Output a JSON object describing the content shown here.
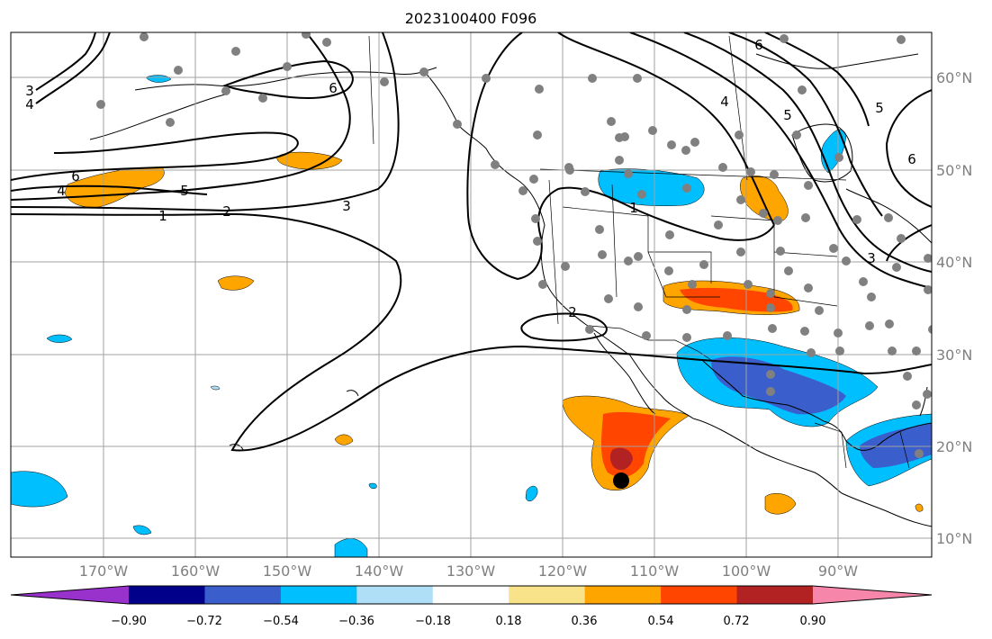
{
  "title": "2023100400 F096",
  "axes": {
    "lon_ticks": [
      "170°W",
      "160°W",
      "150°W",
      "140°W",
      "130°W",
      "120°W",
      "110°W",
      "100°W",
      "90°W"
    ],
    "lat_ticks": [
      "60°N",
      "50°N",
      "40°N",
      "30°N",
      "20°N",
      "10°N"
    ]
  },
  "colorbar": {
    "tick_labels": [
      "−0.90",
      "−0.72",
      "−0.54",
      "−0.36",
      "−0.18",
      "0.18",
      "0.36",
      "0.54",
      "0.72",
      "0.90"
    ],
    "colors": [
      "#9932cc",
      "#00008b",
      "#3a5fcd",
      "#00bfff",
      "#aedff7",
      "#ffffff",
      "#f8e38a",
      "#ffa500",
      "#ff4500",
      "#b22222",
      "#f687aa"
    ]
  },
  "contour_labels": [
    "3",
    "4",
    "6",
    "6",
    "4",
    "5",
    "1",
    "2",
    "3",
    "1",
    "2",
    "4",
    "5",
    "6",
    "5",
    "6",
    "3"
  ]
}
